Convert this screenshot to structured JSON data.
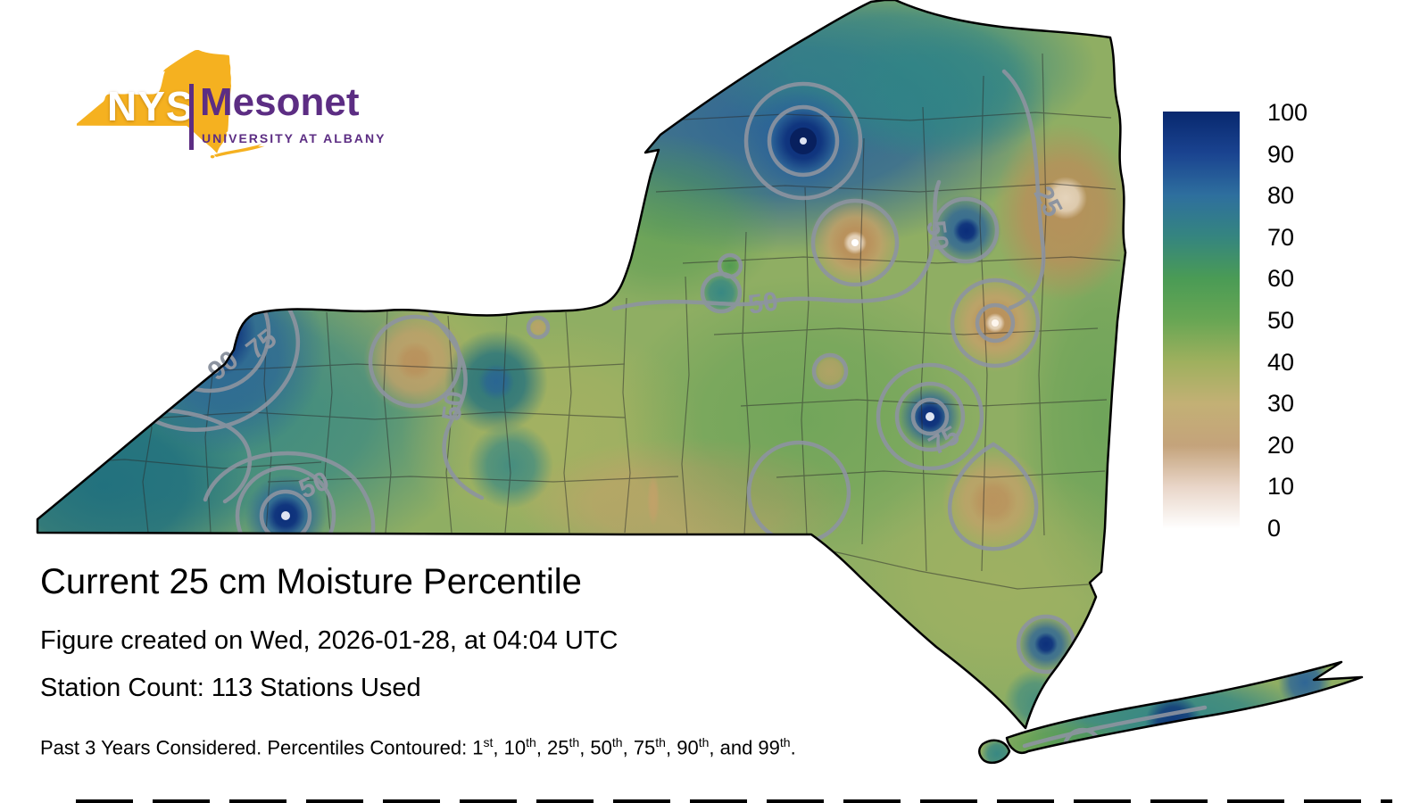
{
  "logo": {
    "nys": "NYS",
    "mesonet": "Mesonet",
    "tagline": "UNIVERSITY AT ALBANY",
    "state_color": "#f5b120",
    "purple": "#5c2d83"
  },
  "map": {
    "region": "New York State",
    "p90": "90",
    "p75": "75",
    "p50": "50",
    "p25": "25",
    "contour_line_color": "#8d94a0",
    "state_outline_color": "#000000"
  },
  "colorbar": {
    "ticks": [
      "100",
      "90",
      "80",
      "70",
      "60",
      "50",
      "40",
      "30",
      "20",
      "10",
      "0"
    ],
    "stops": [
      "#08286e",
      "#1a4390",
      "#2e6f9e",
      "#35857f",
      "#4a9b55",
      "#68a654",
      "#9fb05e",
      "#c3b075",
      "#c4a37b",
      "#e9d6c9",
      "#ffffff"
    ]
  },
  "caption": {
    "title": "Current 25 cm Moisture Percentile",
    "created": "Figure created on Wed, 2026-01-28, at 04:04 UTC",
    "stations": "Station Count: 113 Stations Used",
    "footnote_parts": [
      {
        "t": "Past 3 Years Considered. Percentiles Contoured: 1"
      },
      {
        "t": "st",
        "sup": true
      },
      {
        "t": ", 10"
      },
      {
        "t": "th",
        "sup": true
      },
      {
        "t": ", 25"
      },
      {
        "t": "th",
        "sup": true
      },
      {
        "t": ", 50"
      },
      {
        "t": "th",
        "sup": true
      },
      {
        "t": ", 75"
      },
      {
        "t": "th",
        "sup": true
      },
      {
        "t": ", 90"
      },
      {
        "t": "th",
        "sup": true
      },
      {
        "t": ", and 99"
      },
      {
        "t": "th",
        "sup": true
      },
      {
        "t": "."
      }
    ]
  },
  "chart_data": {
    "type": "heatmap",
    "title": "Current 25 cm Moisture Percentile",
    "region": "New York State",
    "colorbar_range": [
      0,
      100
    ],
    "colorbar_ticks": [
      100,
      90,
      80,
      70,
      60,
      50,
      40,
      30,
      20,
      10,
      0
    ],
    "contoured_percentiles": [
      1,
      10,
      25,
      50,
      75,
      90,
      99
    ],
    "station_count": 113,
    "years_considered": 3,
    "created": "Wed, 2026-01-28, at 04:04 UTC",
    "legend_position": "right",
    "visible_contour_labels": [
      "90",
      "75",
      "50",
      "50",
      "50",
      "50",
      "25",
      "75"
    ]
  }
}
